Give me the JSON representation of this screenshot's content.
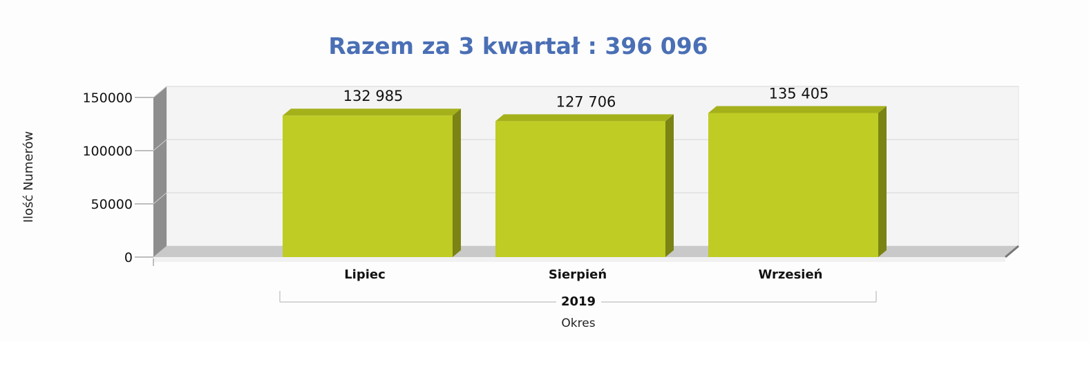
{
  "chart_data": {
    "type": "bar",
    "title": "Razem za 3 kwartał : 396 096",
    "ylabel": "Ilość Numerów",
    "xlabel": "Okres",
    "group_label": "2019",
    "categories": [
      "Lipiec",
      "Sierpień",
      "Wrzesień"
    ],
    "values": [
      132985,
      127706,
      135405
    ],
    "value_labels": [
      "132 985",
      "127 706",
      "135 405"
    ],
    "ylim": [
      0,
      150000
    ],
    "yticks": [
      0,
      50000,
      100000,
      150000
    ],
    "ytick_labels": [
      "0",
      "50000",
      "100000",
      "150000"
    ],
    "grid": true,
    "legend": "none",
    "style": "3d",
    "colors": {
      "bar_front": "#bfcc24",
      "bar_top": "#a5b11b",
      "bar_side": "#7a8313",
      "title": "#4a6fb5",
      "back_wall": "#f4f4f4",
      "left_wall": "#8e8e8e",
      "floor": "#c9c9c9",
      "grid": "#d6d6d6"
    }
  }
}
